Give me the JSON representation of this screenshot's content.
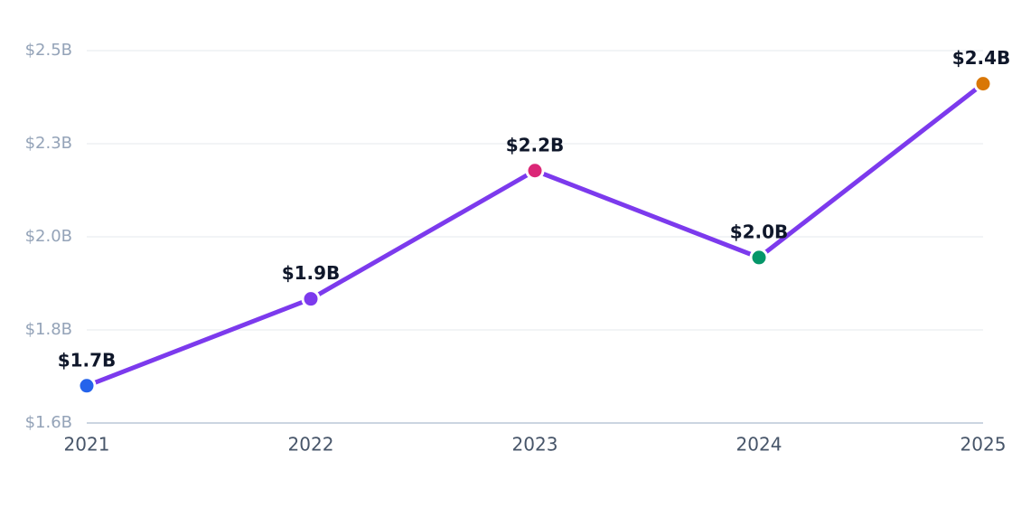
{
  "chart_data": {
    "type": "line",
    "categories": [
      "2021",
      "2022",
      "2023",
      "2024",
      "2025"
    ],
    "series": [
      {
        "color": "#7c3aed",
        "values": [
          1.69,
          1.9,
          2.21,
          2.0,
          2.42
        ],
        "value_labels": [
          "$1.7B",
          "$1.9B",
          "$2.2B",
          "$2.0B",
          "$2.4B"
        ],
        "point_colors": [
          "#2563eb",
          "#7c3aed",
          "#db2777",
          "#059669",
          "#d97706"
        ]
      }
    ],
    "ylim": [
      1.6,
      2.5
    ],
    "yticks": [
      {
        "value": 1.6,
        "label": "$1.6B"
      },
      {
        "value": 1.825,
        "label": "$1.8B"
      },
      {
        "value": 2.05,
        "label": "$2.0B"
      },
      {
        "value": 2.275,
        "label": "$2.3B"
      },
      {
        "value": 2.5,
        "label": "$2.5B"
      }
    ],
    "grid": true
  }
}
